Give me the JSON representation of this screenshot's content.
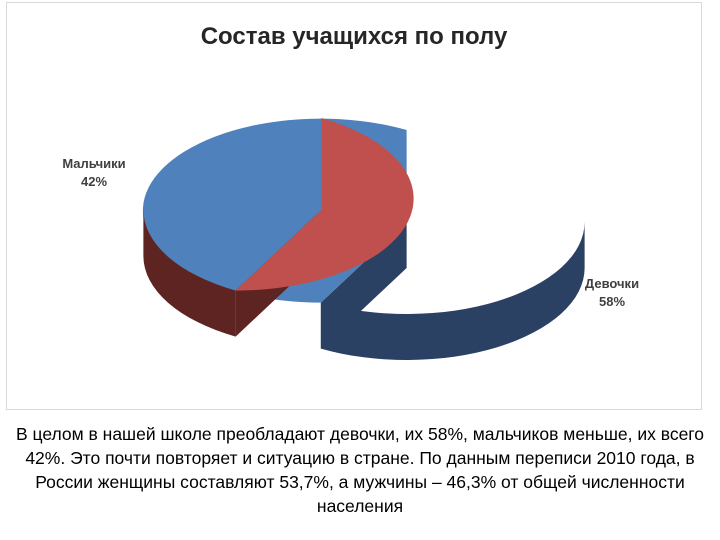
{
  "chart_data": {
    "type": "pie",
    "title": "Состав учащихся по полу",
    "categories": [
      "Девочки",
      "Мальчики"
    ],
    "values": [
      58,
      42
    ],
    "value_labels": [
      "58%",
      "42%"
    ],
    "colors": {
      "Девочки": {
        "top": "#4f81bd",
        "side": "#2b4163"
      },
      "Мальчики": {
        "top": "#c0504d",
        "side": "#5e2422"
      }
    },
    "style": "3d-exploded"
  },
  "caption": "В целом в нашей школе преобладают девочки, их 58%, мальчиков меньше, их всего 42%. Это почти повторяет и ситуацию в стране. По данным переписи 2010 года, в России женщины составляют 53,7%, а мужчины – 46,3% от общей численности населения"
}
